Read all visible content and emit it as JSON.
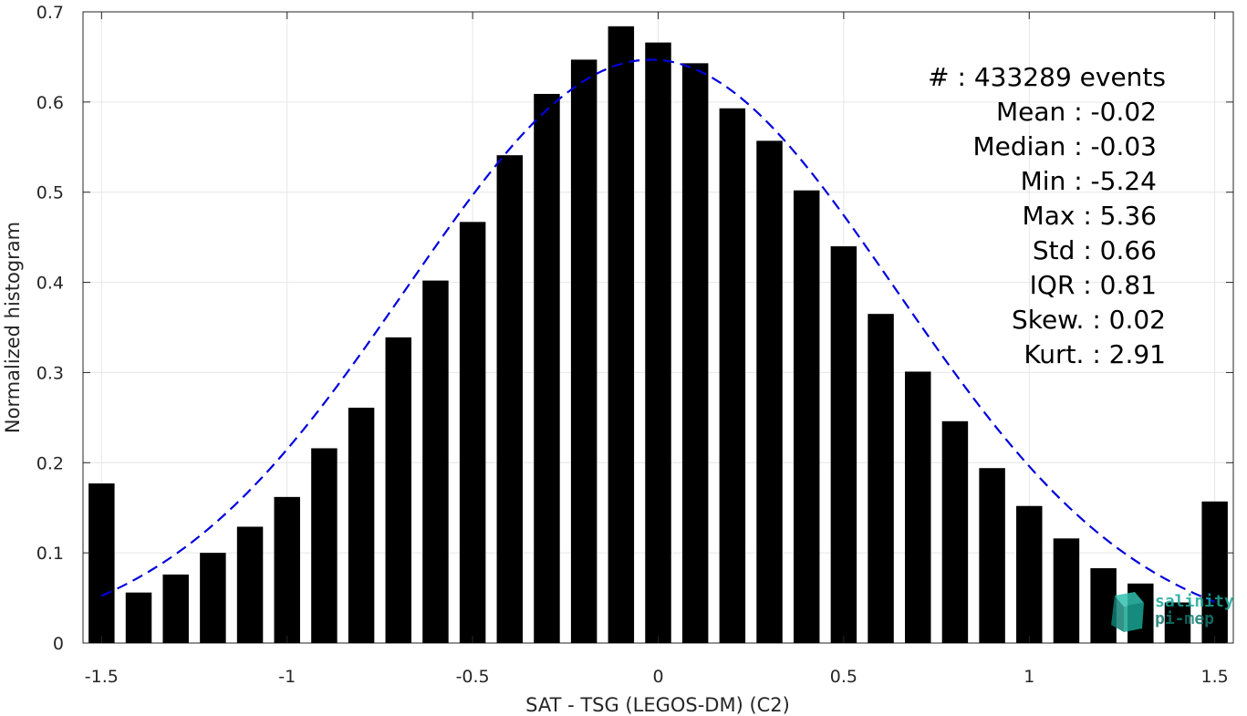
{
  "chart_data": {
    "type": "bar",
    "xlabel": "SAT - TSG (LEGOS-DM) (C2)",
    "ylabel": "Normalized histogram",
    "xlim": [
      -1.55,
      1.55
    ],
    "ylim": [
      0,
      0.7
    ],
    "xticks": [
      -1.5,
      -1,
      -0.5,
      0,
      0.5,
      1,
      1.5
    ],
    "xtick_labels": [
      "-1.5",
      "-1",
      "-0.5",
      "0",
      "0.5",
      "1",
      "1.5"
    ],
    "yticks": [
      0,
      0.1,
      0.2,
      0.3,
      0.4,
      0.5,
      0.6,
      0.7
    ],
    "ytick_labels": [
      "0",
      "0.1",
      "0.2",
      "0.3",
      "0.4",
      "0.5",
      "0.6",
      "0.7"
    ],
    "grid": true,
    "bar_color": "#000000",
    "bars": {
      "x": [
        -1.5,
        -1.4,
        -1.3,
        -1.2,
        -1.1,
        -1.0,
        -0.9,
        -0.8,
        -0.7,
        -0.6,
        -0.5,
        -0.4,
        -0.3,
        -0.2,
        -0.1,
        0.0,
        0.1,
        0.2,
        0.3,
        0.4,
        0.5,
        0.6,
        0.7,
        0.8,
        0.9,
        1.0,
        1.1,
        1.2,
        1.3,
        1.4,
        1.5
      ],
      "values": [
        0.177,
        0.056,
        0.076,
        0.1,
        0.129,
        0.162,
        0.216,
        0.261,
        0.339,
        0.402,
        0.467,
        0.541,
        0.609,
        0.647,
        0.684,
        0.666,
        0.643,
        0.593,
        0.557,
        0.502,
        0.44,
        0.365,
        0.301,
        0.246,
        0.194,
        0.152,
        0.116,
        0.083,
        0.066,
        0.045,
        0.157
      ]
    },
    "fit_curve": {
      "style": "dashed",
      "color": "#0000dd",
      "mean": -0.02,
      "std": 0.66,
      "peak": 0.647,
      "x_range": [
        -1.5,
        1.5
      ]
    },
    "annotations": [
      "#   : 433289 events",
      "Mean : -0.02",
      "Median : -0.03",
      "Min : -5.24",
      "Max : 5.36",
      "Std : 0.66",
      "IQR : 0.81",
      "Skew. : 0.02",
      "Kurt. : 2.91"
    ]
  },
  "logo": {
    "line1": "salinity",
    "line2": "pi-mep",
    "color": "#1aa89a"
  }
}
